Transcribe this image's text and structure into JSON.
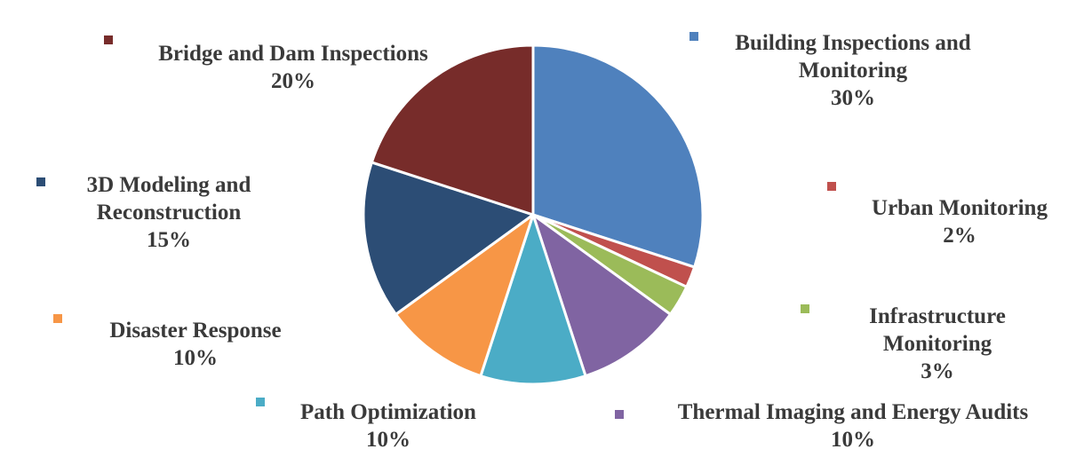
{
  "chart_data": {
    "type": "pie",
    "slices": [
      {
        "name": "Building Inspections and Monitoring",
        "label_lines": [
          "Building Inspections and",
          "Monitoring"
        ],
        "pct_label": "30%",
        "value": 30,
        "color": "#4F81BD"
      },
      {
        "name": "Urban Monitoring",
        "label_lines": [
          "Urban Monitoring"
        ],
        "pct_label": "2%",
        "value": 2,
        "color": "#C0504D"
      },
      {
        "name": "Infrastructure Monitoring",
        "label_lines": [
          "Infrastructure",
          "Monitoring"
        ],
        "pct_label": "3%",
        "value": 3,
        "color": "#9BBB59"
      },
      {
        "name": "Thermal Imaging and Energy Audits",
        "label_lines": [
          "Thermal Imaging and Energy Audits"
        ],
        "pct_label": "10%",
        "value": 10,
        "color": "#8064A2"
      },
      {
        "name": "Path Optimization",
        "label_lines": [
          "Path Optimization"
        ],
        "pct_label": "10%",
        "value": 10,
        "color": "#4BACC6"
      },
      {
        "name": "Disaster Response",
        "label_lines": [
          "Disaster Response"
        ],
        "pct_label": "10%",
        "value": 10,
        "color": "#F79646"
      },
      {
        "name": "3D Modeling and Reconstruction",
        "label_lines": [
          "3D Modeling and",
          "Reconstruction"
        ],
        "pct_label": "15%",
        "value": 15,
        "color": "#2C4D75"
      },
      {
        "name": "Bridge and Dam Inspections",
        "label_lines": [
          "Bridge and Dam Inspections"
        ],
        "pct_label": "20%",
        "value": 20,
        "color": "#772C2A"
      }
    ],
    "start_angle": "12 o'clock",
    "direction": "clockwise",
    "legend": "category markers beside labels"
  }
}
